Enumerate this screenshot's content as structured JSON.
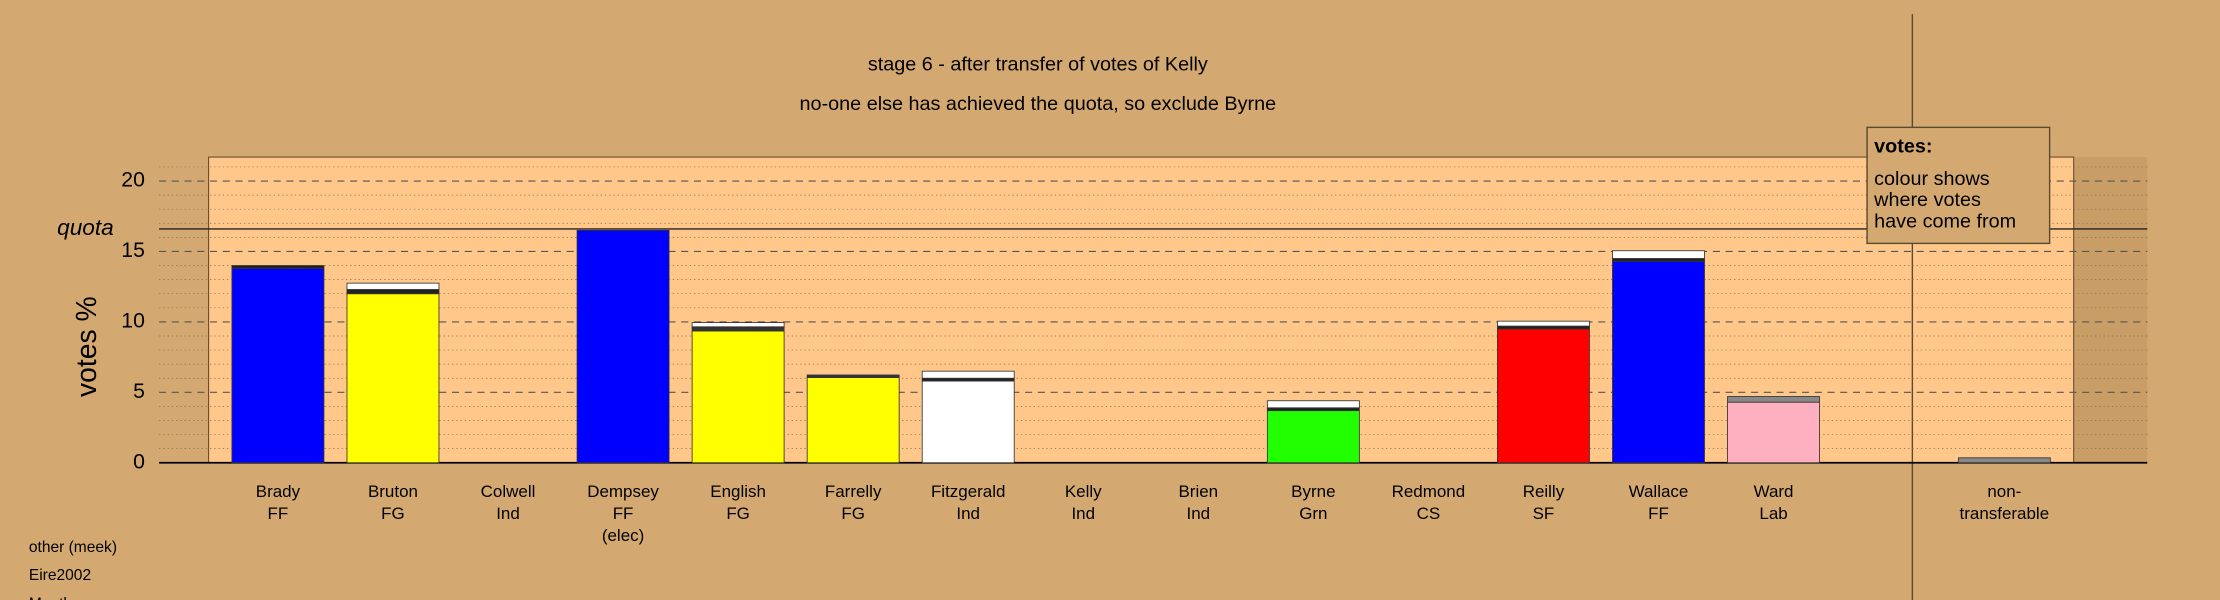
{
  "chart_data": {
    "type": "bar",
    "title": "stage 6 - after transfer of votes of Kelly",
    "subtitle": "no-one else has achieved the quota, so exclude Byrne",
    "ylabel": "votes %",
    "quota_label": "quota",
    "quota": 16.6,
    "categories": [
      [
        "Brady",
        "FF"
      ],
      [
        "Bruton",
        "FG"
      ],
      [
        "Colwell",
        "Ind"
      ],
      [
        "Dempsey",
        "FF",
        "(elec)"
      ],
      [
        "English",
        "FG"
      ],
      [
        "Farrelly",
        "FG"
      ],
      [
        "Fitzgerald",
        "Ind"
      ],
      [
        "Kelly",
        "Ind"
      ],
      [
        "Brien",
        "Ind"
      ],
      [
        "Byrne",
        "Grn"
      ],
      [
        "Redmond",
        "CS"
      ],
      [
        "Reilly",
        "SF"
      ],
      [
        "Wallace",
        "FF"
      ],
      [
        "Ward",
        "Lab"
      ]
    ],
    "series": [
      {
        "colors": [
          "#0000ff",
          "#ffff00",
          "#ffff00",
          "#0000ff",
          "#ffff00",
          "#ffff00",
          "#ffffff",
          "#ffffff",
          "#ffffff",
          "#22ff00",
          "#ffffff",
          "#ff0000",
          "#0000ff",
          "#ffb0c0"
        ],
        "values": [
          13.8,
          12.0,
          0,
          16.5,
          9.35,
          6.05,
          5.8,
          0,
          0,
          3.7,
          0,
          9.5,
          14.3,
          4.3
        ]
      },
      {
        "colors": [
          "#222222",
          "#222222",
          "#222222",
          "#222222",
          "#333333",
          "#333333",
          "#222222",
          "#222222",
          "#222222",
          "#222222",
          "#222222",
          "#222222",
          "#222222",
          "#888888"
        ],
        "values": [
          0.2,
          0.3,
          0,
          0,
          0.3,
          0.18,
          0.2,
          0,
          0,
          0.2,
          0,
          0.2,
          0.2,
          0.4
        ]
      },
      {
        "colors": [
          "#ffffff",
          "#ffffff",
          "#ffffff",
          "#ffffff",
          "#ffffff",
          "#ffffff",
          "#ffffff",
          "#ffffff",
          "#ffffff",
          "#ffffff",
          "#ffffff",
          "#ffffff",
          "#ffffff",
          "#ffffff"
        ],
        "values": [
          0,
          0.45,
          0,
          0,
          0.3,
          0,
          0.5,
          0,
          0,
          0.5,
          0,
          0.35,
          0.55,
          0
        ]
      }
    ],
    "nontransferable": {
      "label": [
        "non-",
        "transferable"
      ],
      "value": 0.35,
      "color": "#888888"
    },
    "ylim": [
      0,
      21.7
    ],
    "yticks": [
      0,
      5,
      10,
      15,
      20
    ],
    "minor_yticks": [
      1,
      2,
      3,
      4,
      6,
      7,
      8,
      9,
      11,
      12,
      13,
      14,
      16,
      17,
      18,
      19,
      21
    ],
    "grid": true,
    "legend": {
      "title": "votes:",
      "lines": [
        "colour shows",
        "where votes",
        "have come from"
      ]
    },
    "footer": [
      "other (meek)",
      "Eire2002",
      "Meath"
    ]
  }
}
